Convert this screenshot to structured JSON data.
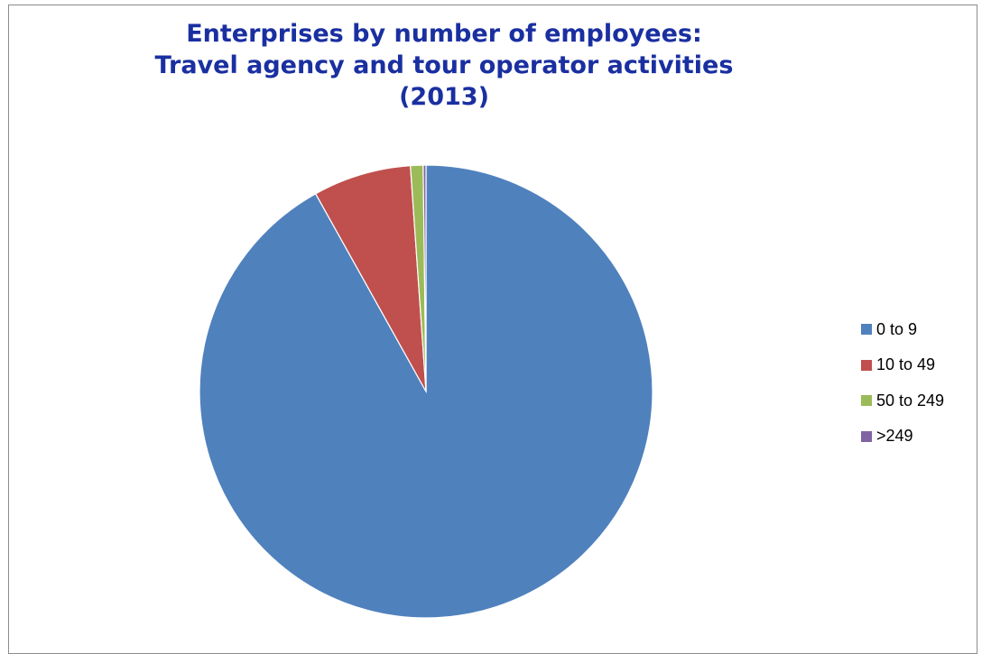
{
  "chart_data": {
    "type": "pie",
    "title": [
      "Enterprises by number of employees:",
      "Travel agency and tour operator activities",
      "(2013)"
    ],
    "categories": [
      "0 to 9",
      "10 to 49",
      "50 to 249",
      ">249"
    ],
    "values": [
      91.9,
      7.0,
      0.9,
      0.2
    ],
    "unit": "%",
    "colors": [
      "#4f81bd",
      "#c0504d",
      "#9bbb59",
      "#8064a2"
    ],
    "legend_position": "right",
    "start_angle_deg": 0,
    "direction": "clockwise"
  }
}
